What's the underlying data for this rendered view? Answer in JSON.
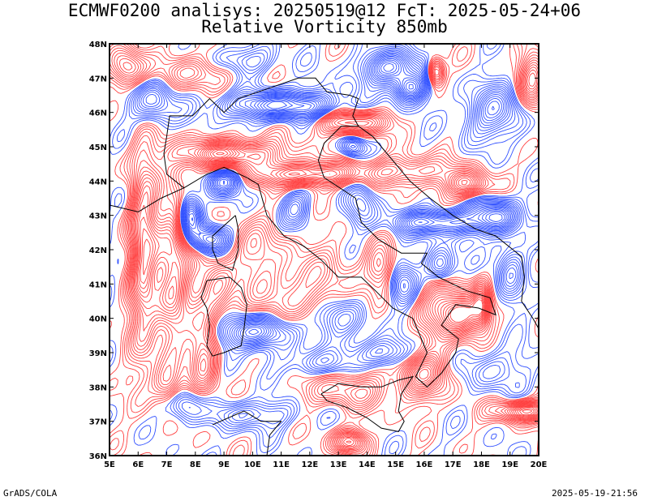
{
  "title": {
    "line1": "ECMWF0200 analisys: 20250519@12 FcT: 2025-05-24+06",
    "line2": "Relative Vorticity 850mb"
  },
  "footer": {
    "left": "GrADS/COLA",
    "right": "2025-05-19-21:56"
  },
  "map": {
    "lon_range": [
      5,
      20
    ],
    "lat_range": [
      36,
      48
    ],
    "lon_ticks": [
      "5E",
      "6E",
      "7E",
      "8E",
      "9E",
      "10E",
      "11E",
      "12E",
      "13E",
      "14E",
      "15E",
      "16E",
      "17E",
      "18E",
      "19E",
      "20E"
    ],
    "lat_ticks": [
      "36N",
      "37N",
      "38N",
      "39N",
      "40N",
      "41N",
      "42N",
      "43N",
      "44N",
      "45N",
      "46N",
      "47N",
      "48N"
    ],
    "colors": {
      "positive": "#ff4040",
      "negative": "#3050ff",
      "coast": "#000000"
    }
  }
}
